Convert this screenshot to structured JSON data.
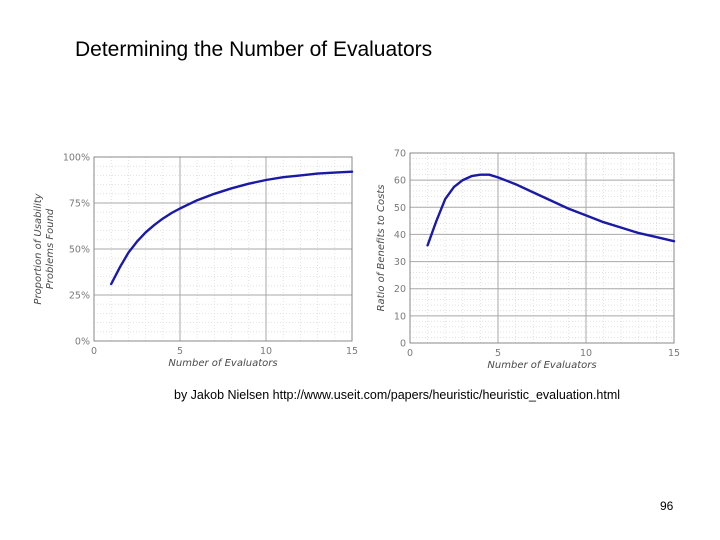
{
  "slide": {
    "title": "Determining the Number of Evaluators",
    "credit": "by Jakob Nielsen http://www.useit.com/papers/heuristic/heuristic_evaluation.html",
    "page_number": "96"
  },
  "chart_data": [
    {
      "type": "line",
      "title": "",
      "xlabel": "Number of Evaluators",
      "ylabel_lines": [
        "Proportion of Usability",
        "Problems Found"
      ],
      "xlim": [
        0,
        15
      ],
      "ylim": [
        0,
        100
      ],
      "xticks": [
        0,
        5,
        10,
        15
      ],
      "xtick_labels": [
        "0",
        "5",
        "10",
        "15"
      ],
      "yticks": [
        0,
        25,
        50,
        75,
        100
      ],
      "ytick_labels": [
        "0%",
        "25%",
        "50%",
        "75%",
        "100%"
      ],
      "grid": "major",
      "line_color": "#1a1aa6",
      "series": [
        {
          "x": [
            1,
            1.5,
            2,
            2.5,
            3,
            3.5,
            4,
            4.5,
            5,
            6,
            7,
            8,
            9,
            10,
            11,
            12,
            13,
            14,
            15
          ],
          "y": [
            31,
            40,
            48,
            54,
            59,
            63,
            66.5,
            69.5,
            72,
            76.5,
            80,
            83,
            85.5,
            87.5,
            89,
            90,
            91,
            91.5,
            92
          ]
        }
      ]
    },
    {
      "type": "line",
      "title": "",
      "xlabel": "Number of Evaluators",
      "ylabel_lines": [
        "Ratio of Benefits to Costs"
      ],
      "xlim": [
        0,
        15
      ],
      "ylim": [
        0,
        70
      ],
      "xticks": [
        0,
        5,
        10,
        15
      ],
      "xtick_labels": [
        "0",
        "5",
        "10",
        "15"
      ],
      "yticks": [
        0,
        10,
        20,
        30,
        40,
        50,
        60,
        70
      ],
      "ytick_labels": [
        "0",
        "10",
        "20",
        "30",
        "40",
        "50",
        "60",
        "70"
      ],
      "grid": "major",
      "line_color": "#1a1aa6",
      "series": [
        {
          "x": [
            1,
            1.5,
            2,
            2.5,
            3,
            3.5,
            4,
            4.5,
            5,
            6,
            7,
            8,
            9,
            10,
            11,
            12,
            13,
            14,
            15
          ],
          "y": [
            36,
            45,
            53,
            57.5,
            60,
            61.5,
            62,
            62,
            61,
            58.5,
            55.5,
            52.5,
            49.5,
            47,
            44.5,
            42.5,
            40.5,
            39,
            37.5
          ]
        }
      ]
    }
  ]
}
